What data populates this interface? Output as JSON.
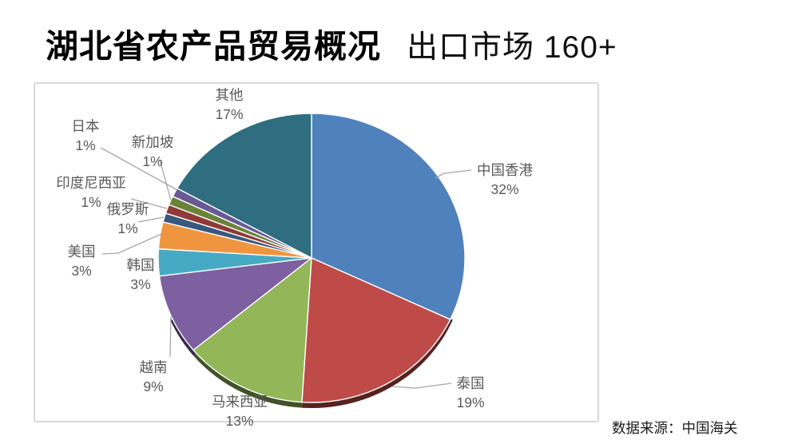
{
  "page": {
    "background": "#FFFFFF"
  },
  "header": {
    "title": "湖北省农产品贸易概况",
    "subtitle": "出口市场 160+"
  },
  "footer": {
    "source": "数据来源：中国海关"
  },
  "chart_data": {
    "type": "pie",
    "title": "湖北省农产品贸易概况 出口市场 160+",
    "direction": "clockwise",
    "start_angle": "12-o'clock",
    "label_format": "name + percent",
    "label_color": "#595959",
    "leader_line_color": "#A6A6A6",
    "slice_border_color": "#FFFFFF",
    "slices": [
      {
        "label": "中国香港",
        "value": 32,
        "color": "#4F81BD"
      },
      {
        "label": "泰国",
        "value": 19,
        "color": "#BE4B48"
      },
      {
        "label": "马来西亚",
        "value": 13,
        "color": "#93B658"
      },
      {
        "label": "越南",
        "value": 9,
        "color": "#7D60A0"
      },
      {
        "label": "韩国",
        "value": 3,
        "color": "#46AAC5"
      },
      {
        "label": "美国",
        "value": 3,
        "color": "#F0953F"
      },
      {
        "label": "俄罗斯",
        "value": 1,
        "color": "#39587F"
      },
      {
        "label": "印度尼西亚",
        "value": 1,
        "color": "#8F3A37"
      },
      {
        "label": "新加坡",
        "value": 1,
        "color": "#6A8339"
      },
      {
        "label": "日本",
        "value": 1,
        "color": "#695A94"
      },
      {
        "label": "其他",
        "value": 17,
        "color": "#2E6E80"
      }
    ]
  }
}
